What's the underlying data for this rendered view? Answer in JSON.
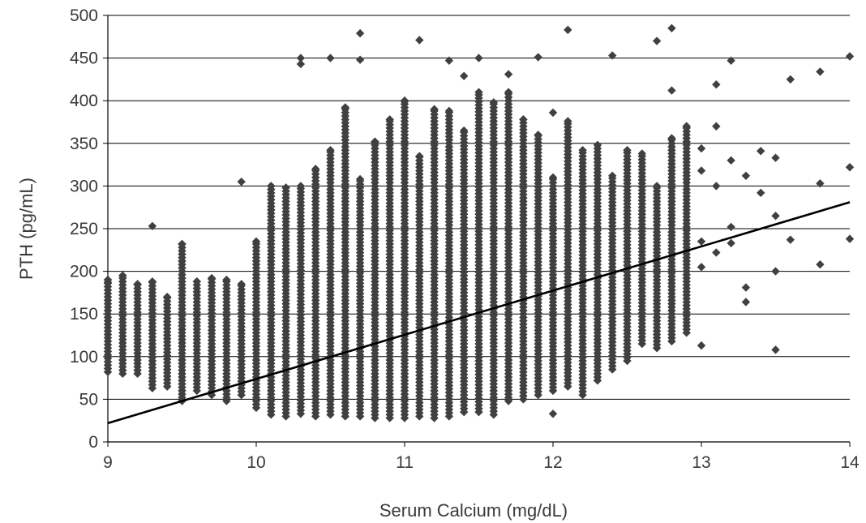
{
  "chart_data": {
    "type": "scatter",
    "xlabel": "Serum Calcium (mg/dL)",
    "ylabel": "PTH (pg/mL)",
    "xlim": [
      9,
      14
    ],
    "ylim": [
      0,
      500
    ],
    "x_ticks": [
      9,
      10,
      11,
      12,
      13,
      14
    ],
    "y_ticks": [
      0,
      50,
      100,
      150,
      200,
      250,
      300,
      350,
      400,
      450,
      500
    ],
    "grid": "horizontal",
    "legend": "none",
    "colors": {
      "points": "#404040",
      "trendline": "#000000",
      "grid": "#000000"
    },
    "series": [
      {
        "marker": "diamond",
        "x_step": 0.1,
        "column_ranges": [
          {
            "x": 9.0,
            "y_min": 82,
            "y_max": 190
          },
          {
            "x": 9.1,
            "y_min": 80,
            "y_max": 195
          },
          {
            "x": 9.2,
            "y_min": 80,
            "y_max": 185
          },
          {
            "x": 9.3,
            "y_min": 63,
            "y_max": 188
          },
          {
            "x": 9.4,
            "y_min": 65,
            "y_max": 170
          },
          {
            "x": 9.5,
            "y_min": 48,
            "y_max": 232
          },
          {
            "x": 9.6,
            "y_min": 60,
            "y_max": 188
          },
          {
            "x": 9.7,
            "y_min": 55,
            "y_max": 192
          },
          {
            "x": 9.8,
            "y_min": 48,
            "y_max": 190
          },
          {
            "x": 9.9,
            "y_min": 55,
            "y_max": 185
          },
          {
            "x": 10.0,
            "y_min": 40,
            "y_max": 235
          },
          {
            "x": 10.1,
            "y_min": 32,
            "y_max": 300
          },
          {
            "x": 10.2,
            "y_min": 30,
            "y_max": 298
          },
          {
            "x": 10.3,
            "y_min": 33,
            "y_max": 300
          },
          {
            "x": 10.4,
            "y_min": 30,
            "y_max": 320
          },
          {
            "x": 10.5,
            "y_min": 32,
            "y_max": 342
          },
          {
            "x": 10.6,
            "y_min": 30,
            "y_max": 392
          },
          {
            "x": 10.7,
            "y_min": 30,
            "y_max": 308
          },
          {
            "x": 10.8,
            "y_min": 28,
            "y_max": 352
          },
          {
            "x": 10.9,
            "y_min": 28,
            "y_max": 378
          },
          {
            "x": 11.0,
            "y_min": 28,
            "y_max": 400
          },
          {
            "x": 11.1,
            "y_min": 30,
            "y_max": 335
          },
          {
            "x": 11.2,
            "y_min": 28,
            "y_max": 390
          },
          {
            "x": 11.3,
            "y_min": 30,
            "y_max": 388
          },
          {
            "x": 11.4,
            "y_min": 35,
            "y_max": 365
          },
          {
            "x": 11.5,
            "y_min": 35,
            "y_max": 410
          },
          {
            "x": 11.6,
            "y_min": 32,
            "y_max": 398
          },
          {
            "x": 11.7,
            "y_min": 48,
            "y_max": 410
          },
          {
            "x": 11.8,
            "y_min": 50,
            "y_max": 378
          },
          {
            "x": 11.9,
            "y_min": 55,
            "y_max": 360
          },
          {
            "x": 12.0,
            "y_min": 60,
            "y_max": 310
          },
          {
            "x": 12.1,
            "y_min": 65,
            "y_max": 376
          },
          {
            "x": 12.2,
            "y_min": 55,
            "y_max": 342
          },
          {
            "x": 12.3,
            "y_min": 72,
            "y_max": 348
          },
          {
            "x": 12.4,
            "y_min": 85,
            "y_max": 312
          },
          {
            "x": 12.5,
            "y_min": 95,
            "y_max": 342
          },
          {
            "x": 12.6,
            "y_min": 115,
            "y_max": 338
          },
          {
            "x": 12.7,
            "y_min": 110,
            "y_max": 300
          },
          {
            "x": 12.8,
            "y_min": 118,
            "y_max": 356
          },
          {
            "x": 12.9,
            "y_min": 128,
            "y_max": 370
          }
        ],
        "outliers": [
          {
            "x": 9.0,
            "y": 187
          },
          {
            "x": 9.1,
            "y": 195
          },
          {
            "x": 9.3,
            "y": 253
          },
          {
            "x": 9.9,
            "y": 305
          },
          {
            "x": 10.1,
            "y": 272
          },
          {
            "x": 10.3,
            "y": 450
          },
          {
            "x": 10.3,
            "y": 443
          },
          {
            "x": 10.5,
            "y": 450
          },
          {
            "x": 10.6,
            "y": 392
          },
          {
            "x": 10.7,
            "y": 479
          },
          {
            "x": 10.7,
            "y": 448
          },
          {
            "x": 11.1,
            "y": 471
          },
          {
            "x": 11.0,
            "y": 399
          },
          {
            "x": 11.3,
            "y": 447
          },
          {
            "x": 11.4,
            "y": 429
          },
          {
            "x": 11.5,
            "y": 450
          },
          {
            "x": 11.7,
            "y": 431
          },
          {
            "x": 11.9,
            "y": 451
          },
          {
            "x": 12.0,
            "y": 386
          },
          {
            "x": 12.1,
            "y": 483
          },
          {
            "x": 12.0,
            "y": 33
          },
          {
            "x": 12.4,
            "y": 453
          },
          {
            "x": 12.7,
            "y": 470
          },
          {
            "x": 12.8,
            "y": 485
          },
          {
            "x": 12.8,
            "y": 412
          },
          {
            "x": 12.9,
            "y": 370
          },
          {
            "x": 13.0,
            "y": 344
          },
          {
            "x": 13.0,
            "y": 318
          },
          {
            "x": 13.0,
            "y": 235
          },
          {
            "x": 13.0,
            "y": 205
          },
          {
            "x": 13.0,
            "y": 113
          },
          {
            "x": 13.1,
            "y": 419
          },
          {
            "x": 13.1,
            "y": 370
          },
          {
            "x": 13.1,
            "y": 300
          },
          {
            "x": 13.1,
            "y": 222
          },
          {
            "x": 13.2,
            "y": 447
          },
          {
            "x": 13.2,
            "y": 330
          },
          {
            "x": 13.2,
            "y": 252
          },
          {
            "x": 13.2,
            "y": 233
          },
          {
            "x": 13.3,
            "y": 312
          },
          {
            "x": 13.3,
            "y": 181
          },
          {
            "x": 13.3,
            "y": 164
          },
          {
            "x": 13.4,
            "y": 341
          },
          {
            "x": 13.4,
            "y": 292
          },
          {
            "x": 13.5,
            "y": 333
          },
          {
            "x": 13.5,
            "y": 265
          },
          {
            "x": 13.5,
            "y": 200
          },
          {
            "x": 13.5,
            "y": 108
          },
          {
            "x": 13.6,
            "y": 425
          },
          {
            "x": 13.6,
            "y": 237
          },
          {
            "x": 13.8,
            "y": 434
          },
          {
            "x": 13.8,
            "y": 303
          },
          {
            "x": 13.8,
            "y": 208
          },
          {
            "x": 14.0,
            "y": 452
          },
          {
            "x": 14.0,
            "y": 322
          },
          {
            "x": 14.0,
            "y": 238
          }
        ]
      }
    ],
    "trendline": {
      "type": "linear",
      "x": [
        9,
        14
      ],
      "y": [
        22,
        281
      ]
    }
  }
}
